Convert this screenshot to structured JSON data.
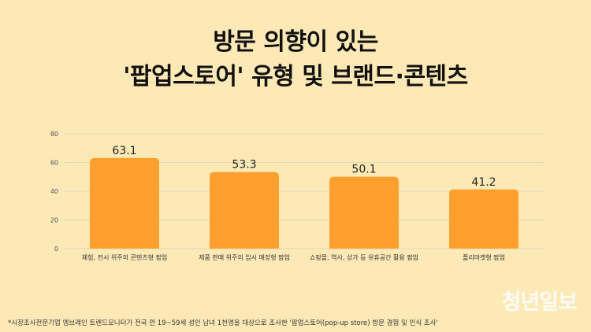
{
  "header": {
    "title_line1": "방문 의향이 있는",
    "title_line2": "'팝업스토어' 유형 및 브랜드·콘텐츠"
  },
  "colors": {
    "background": "#fde9b6",
    "bar": "#ff9f2d",
    "grid": "#e3d6b4"
  },
  "chart_data": {
    "type": "bar",
    "categories": [
      "체험, 전시 위주의 콘텐츠형 팝업",
      "제품 판매 위주의 임시 매장형 팝업",
      "쇼핑몰, 역사, 상가 등 유휴공간 활용 팝업",
      "플리마켓형 팝업"
    ],
    "values": [
      63.1,
      53.3,
      50.1,
      41.2
    ],
    "data_labels": [
      "63.1",
      "53.3",
      "50.1",
      "41.2"
    ],
    "ylim": [
      0,
      80
    ],
    "yticks": [
      0,
      20,
      40,
      60,
      80
    ],
    "ytick_labels": [
      "0",
      "20",
      "40",
      "60",
      "80"
    ],
    "grid": true,
    "title": "",
    "xlabel": "",
    "ylabel": ""
  },
  "footnote": "*시장조사전문기업 엠브레인 트렌드모니터가 전국 만 19~59세 성인 남녀 1천명을 대상으로 조사한 '팝업스토어(pop-up store) 방문 경험 및 인식 조사'",
  "logo_text": "청년일보"
}
